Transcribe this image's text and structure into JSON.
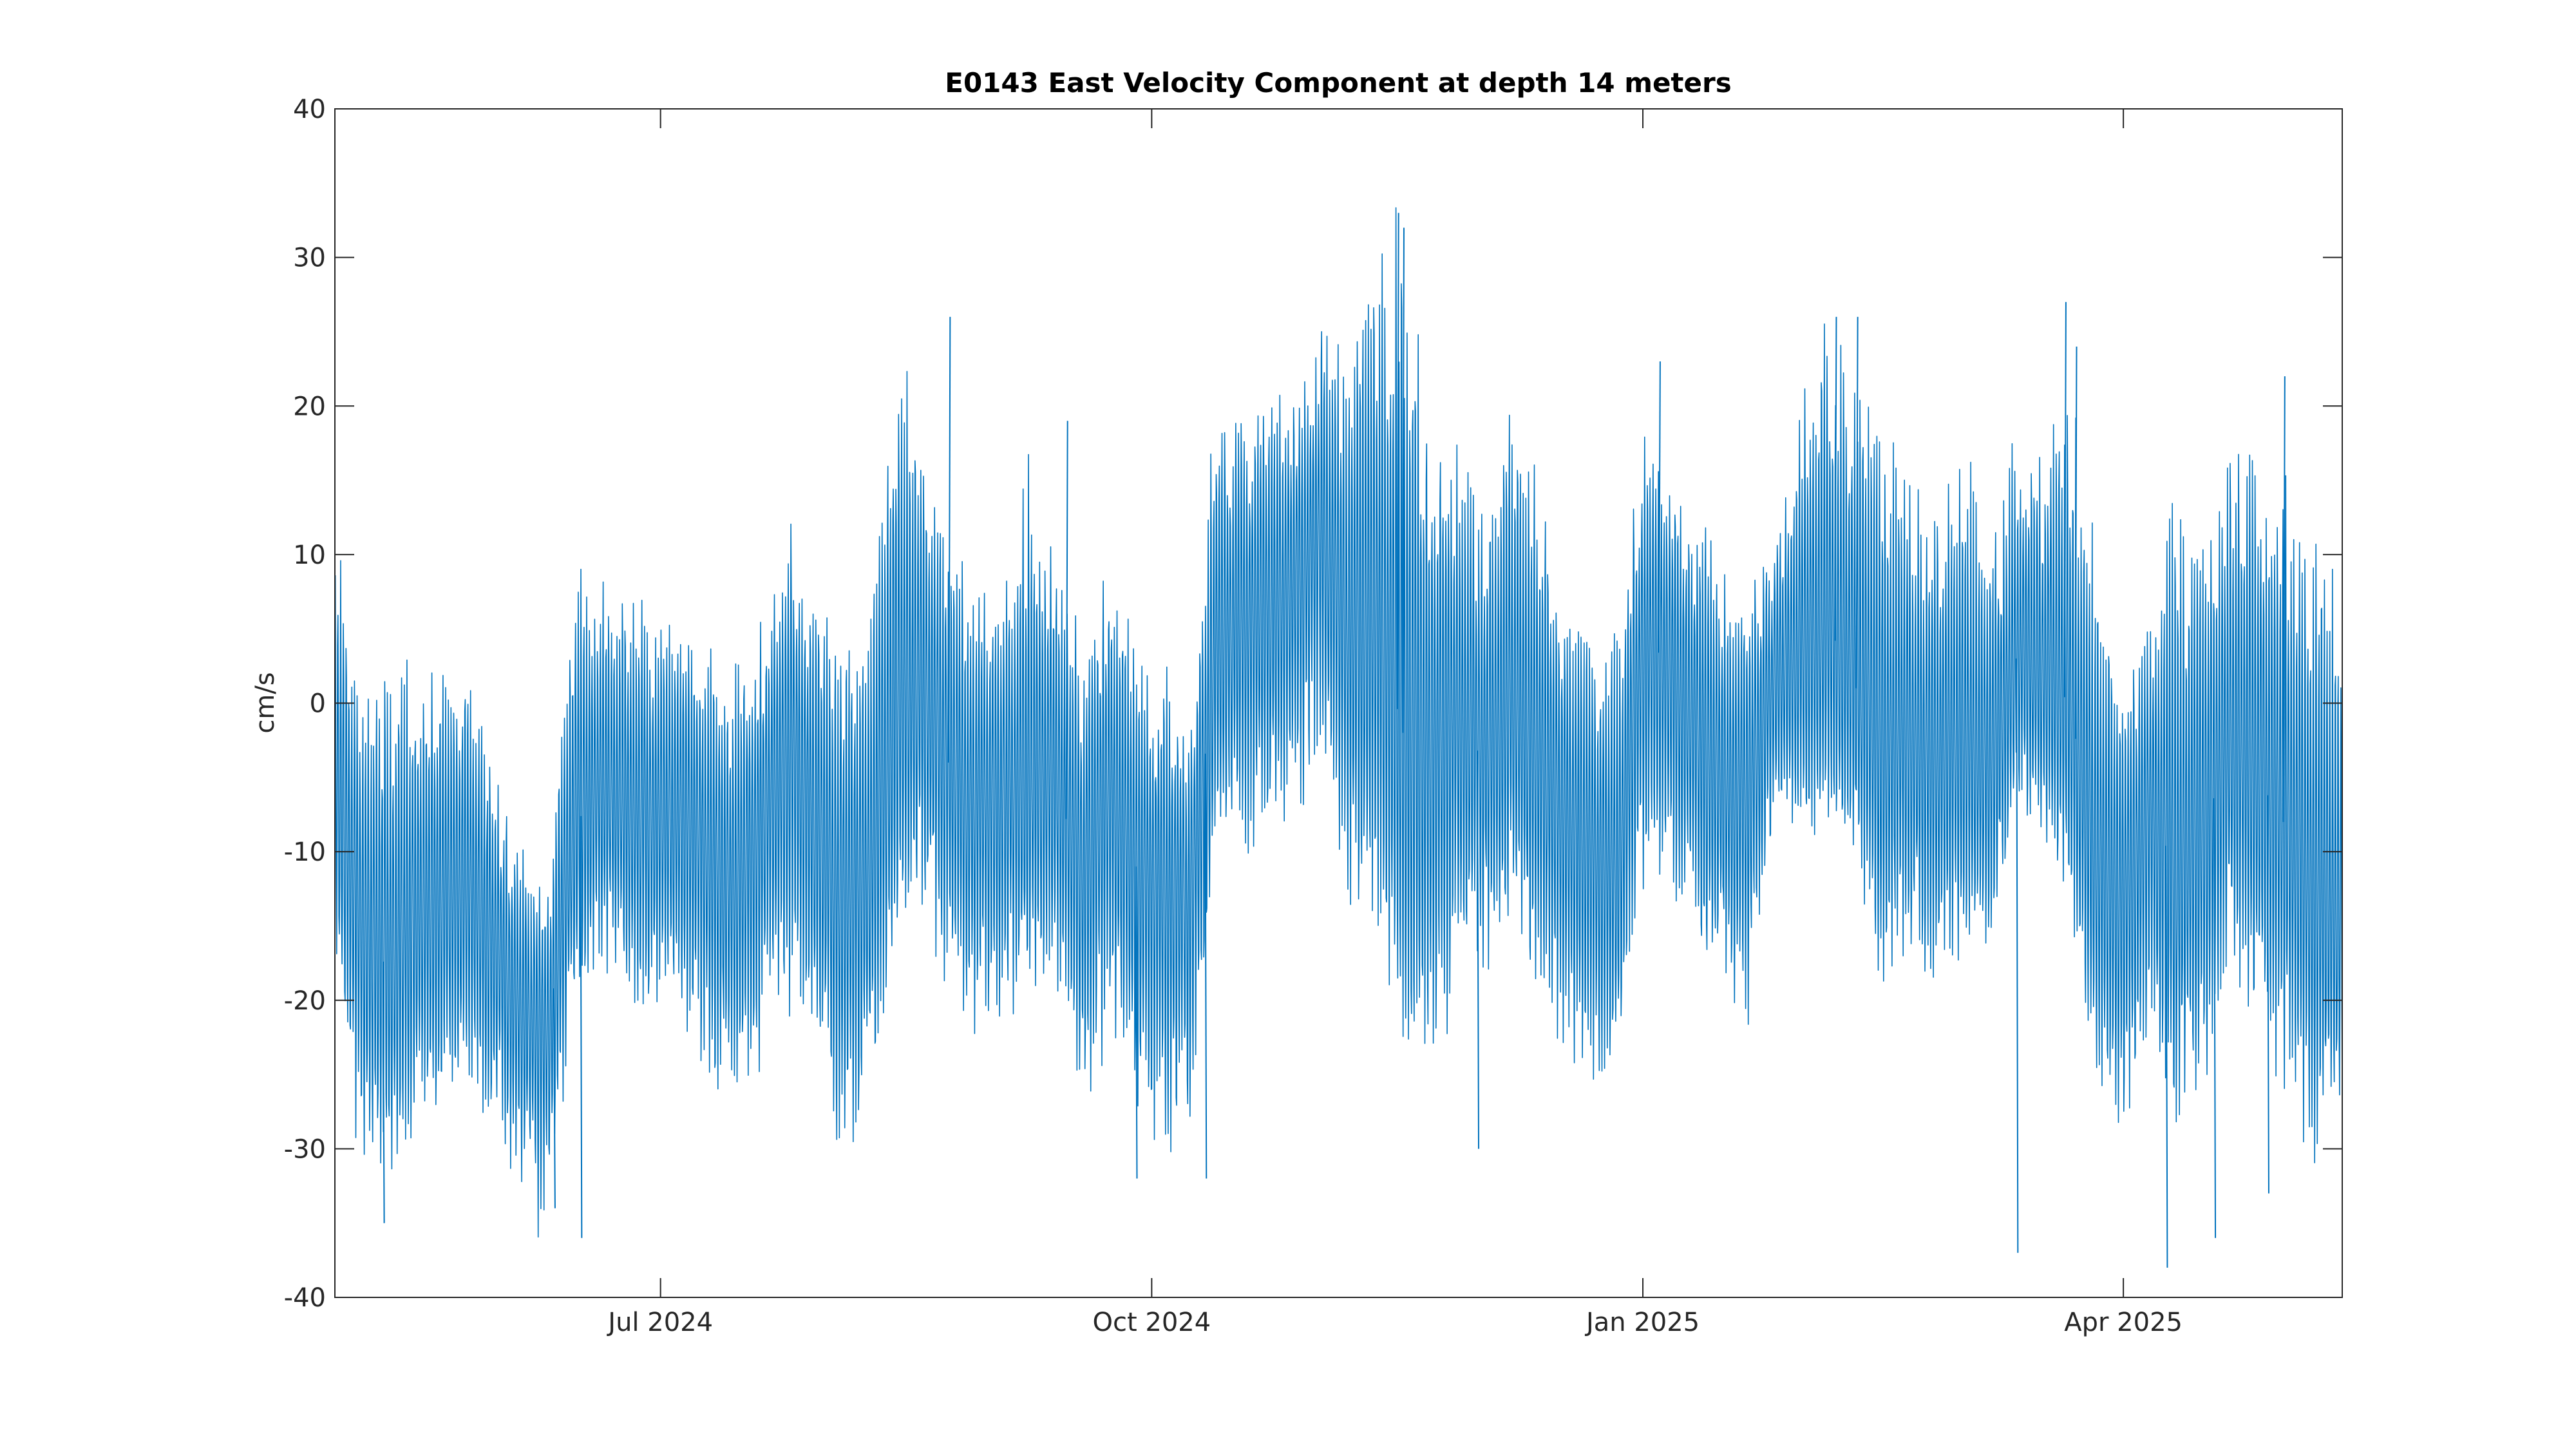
{
  "chart_data": {
    "type": "line",
    "title": "E0143 East Velocity Component at depth 14 meters",
    "xlabel": "",
    "ylabel": "cm/s",
    "xlim": [
      "2024-05-01",
      "2025-05-12"
    ],
    "ylim": [
      -40,
      40
    ],
    "grid": false,
    "x_ticks": [
      {
        "date": "2024-07-01",
        "label": "Jul 2024"
      },
      {
        "date": "2024-10-01",
        "label": "Oct 2024"
      },
      {
        "date": "2025-01-01",
        "label": "Jan 2025"
      },
      {
        "date": "2025-04-01",
        "label": "Apr 2025"
      }
    ],
    "y_ticks": [
      {
        "value": 40,
        "label": "40"
      },
      {
        "value": 30,
        "label": "30"
      },
      {
        "value": 20,
        "label": "20"
      },
      {
        "value": 10,
        "label": "10"
      },
      {
        "value": 0,
        "label": "0"
      },
      {
        "value": -10,
        "label": "-10"
      },
      {
        "value": -20,
        "label": "-20"
      },
      {
        "value": -30,
        "label": "-30"
      },
      {
        "value": -40,
        "label": "-40"
      }
    ],
    "series": [
      {
        "color": "#0072BD",
        "x": [
          "2024-05-01",
          "2024-05-06",
          "2024-05-11",
          "2024-05-16",
          "2024-05-21",
          "2024-05-26",
          "2024-05-31",
          "2024-06-05",
          "2024-06-10",
          "2024-06-15",
          "2024-06-20",
          "2024-06-25",
          "2024-06-30",
          "2024-07-05",
          "2024-07-10",
          "2024-07-15",
          "2024-07-20",
          "2024-07-25",
          "2024-07-30",
          "2024-08-04",
          "2024-08-09",
          "2024-08-14",
          "2024-08-19",
          "2024-08-24",
          "2024-08-29",
          "2024-09-03",
          "2024-09-08",
          "2024-09-13",
          "2024-09-18",
          "2024-09-23",
          "2024-09-28",
          "2024-10-03",
          "2024-10-08",
          "2024-10-13",
          "2024-10-18",
          "2024-10-23",
          "2024-10-28",
          "2024-11-02",
          "2024-11-07",
          "2024-11-12",
          "2024-11-17",
          "2024-11-22",
          "2024-11-27",
          "2024-12-02",
          "2024-12-07",
          "2024-12-12",
          "2024-12-17",
          "2024-12-22",
          "2024-12-27",
          "2025-01-01",
          "2025-01-06",
          "2025-01-11",
          "2025-01-16",
          "2025-01-21",
          "2025-01-26",
          "2025-01-31",
          "2025-02-05",
          "2025-02-10",
          "2025-02-15",
          "2025-02-20",
          "2025-02-25",
          "2025-03-02",
          "2025-03-07",
          "2025-03-12",
          "2025-03-17",
          "2025-03-22",
          "2025-03-27",
          "2025-04-01",
          "2025-04-06",
          "2025-04-11",
          "2025-04-16",
          "2025-04-21",
          "2025-04-26",
          "2025-05-01",
          "2025-05-06",
          "2025-05-11"
        ],
        "y": [
          -4,
          -15,
          -18,
          -14,
          -13,
          -12,
          -16,
          -20,
          -22,
          -8,
          -6,
          -7,
          -8,
          -7,
          -10,
          -12,
          -8,
          -2,
          -8,
          -14,
          -12,
          -2,
          0,
          -4,
          -7,
          -6,
          -6,
          -5,
          -12,
          -6,
          -11,
          -12,
          -13,
          3,
          6,
          7,
          9,
          12,
          4,
          6,
          -2,
          -4,
          0,
          -4,
          0,
          -3,
          -8,
          -10,
          -12,
          4,
          3,
          -2,
          -6,
          -5,
          2,
          3,
          5,
          1,
          -3,
          -2,
          -4,
          -3,
          -5,
          3,
          2,
          0,
          -12,
          -14,
          -6,
          -12,
          -8,
          -4,
          -5,
          -8,
          -14,
          -16
        ],
        "band_low": [
          -20,
          -32,
          -33,
          -30,
          -28,
          -26,
          -30,
          -34,
          -36,
          -20,
          -18,
          -20,
          -21,
          -22,
          -27,
          -29,
          -24,
          -20,
          -26,
          -30,
          -28,
          -16,
          -13,
          -19,
          -22,
          -22,
          -21,
          -20,
          -27,
          -22,
          -28,
          -32,
          -30,
          -12,
          -10,
          -10,
          -8,
          -4,
          -14,
          -18,
          -26,
          -26,
          -20,
          -18,
          -16,
          -20,
          -24,
          -26,
          -25,
          -12,
          -14,
          -18,
          -20,
          -21,
          -8,
          -10,
          -9,
          -13,
          -20,
          -18,
          -20,
          -17,
          -18,
          -8,
          -10,
          -14,
          -28,
          -30,
          -24,
          -30,
          -28,
          -18,
          -22,
          -26,
          -30,
          -28
        ],
        "band_high": [
          11,
          2,
          4,
          2,
          4,
          2,
          -4,
          -10,
          -12,
          10,
          8,
          8,
          6,
          6,
          3,
          2,
          6,
          12,
          8,
          5,
          6,
          26,
          18,
          12,
          9,
          8,
          18,
          10,
          6,
          10,
          3,
          2,
          0,
          20,
          20,
          20,
          21,
          26,
          25,
          30,
          34,
          20,
          18,
          14,
          20,
          16,
          10,
          6,
          4,
          18,
          16,
          14,
          10,
          8,
          12,
          22,
          26,
          24,
          18,
          15,
          14,
          18,
          12,
          18,
          16,
          22,
          10,
          3,
          6,
          14,
          14,
          20,
          18,
          16,
          14,
          10
        ],
        "spikes": [
          {
            "x": "2024-05-10",
            "y": -35
          },
          {
            "x": "2024-06-11",
            "y": -34
          },
          {
            "x": "2024-06-16",
            "y": -36
          },
          {
            "x": "2024-08-24",
            "y": 26
          },
          {
            "x": "2024-09-15",
            "y": 19
          },
          {
            "x": "2024-09-28",
            "y": -32
          },
          {
            "x": "2024-10-11",
            "y": -32
          },
          {
            "x": "2024-11-16",
            "y": 33
          },
          {
            "x": "2024-11-17",
            "y": 32
          },
          {
            "x": "2024-12-01",
            "y": -30
          },
          {
            "x": "2025-01-04",
            "y": 23
          },
          {
            "x": "2025-02-06",
            "y": 26
          },
          {
            "x": "2025-02-10",
            "y": 26
          },
          {
            "x": "2025-03-12",
            "y": -37
          },
          {
            "x": "2025-03-21",
            "y": 27
          },
          {
            "x": "2025-03-23",
            "y": 24
          },
          {
            "x": "2025-04-09",
            "y": -38
          },
          {
            "x": "2025-04-18",
            "y": -36
          },
          {
            "x": "2025-05-01",
            "y": 22
          },
          {
            "x": "2025-04-28",
            "y": -33
          }
        ]
      }
    ]
  }
}
